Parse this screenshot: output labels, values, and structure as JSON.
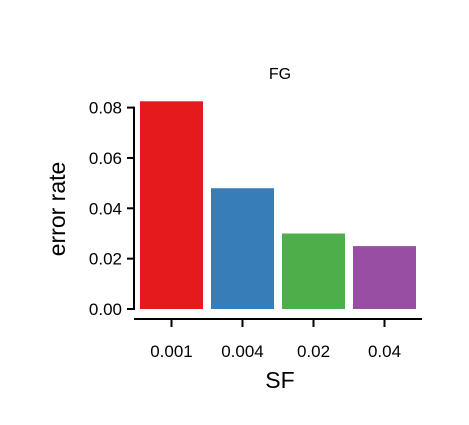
{
  "chart_data": {
    "type": "bar",
    "title": "FG",
    "xlabel": "SF",
    "ylabel": "error rate",
    "categories": [
      "0.001",
      "0.004",
      "0.02",
      "0.04"
    ],
    "values": [
      0.0825,
      0.048,
      0.03,
      0.025
    ],
    "colors": [
      "#E41A1C",
      "#377EB8",
      "#4DAF4A",
      "#984EA3"
    ],
    "ylim": [
      0,
      0.085
    ],
    "yticks": [
      0.0,
      0.02,
      0.04,
      0.06,
      0.08
    ],
    "ytick_labels": [
      "0.00",
      "0.02",
      "0.04",
      "0.06",
      "0.08"
    ],
    "grid": false,
    "legend": "none"
  }
}
